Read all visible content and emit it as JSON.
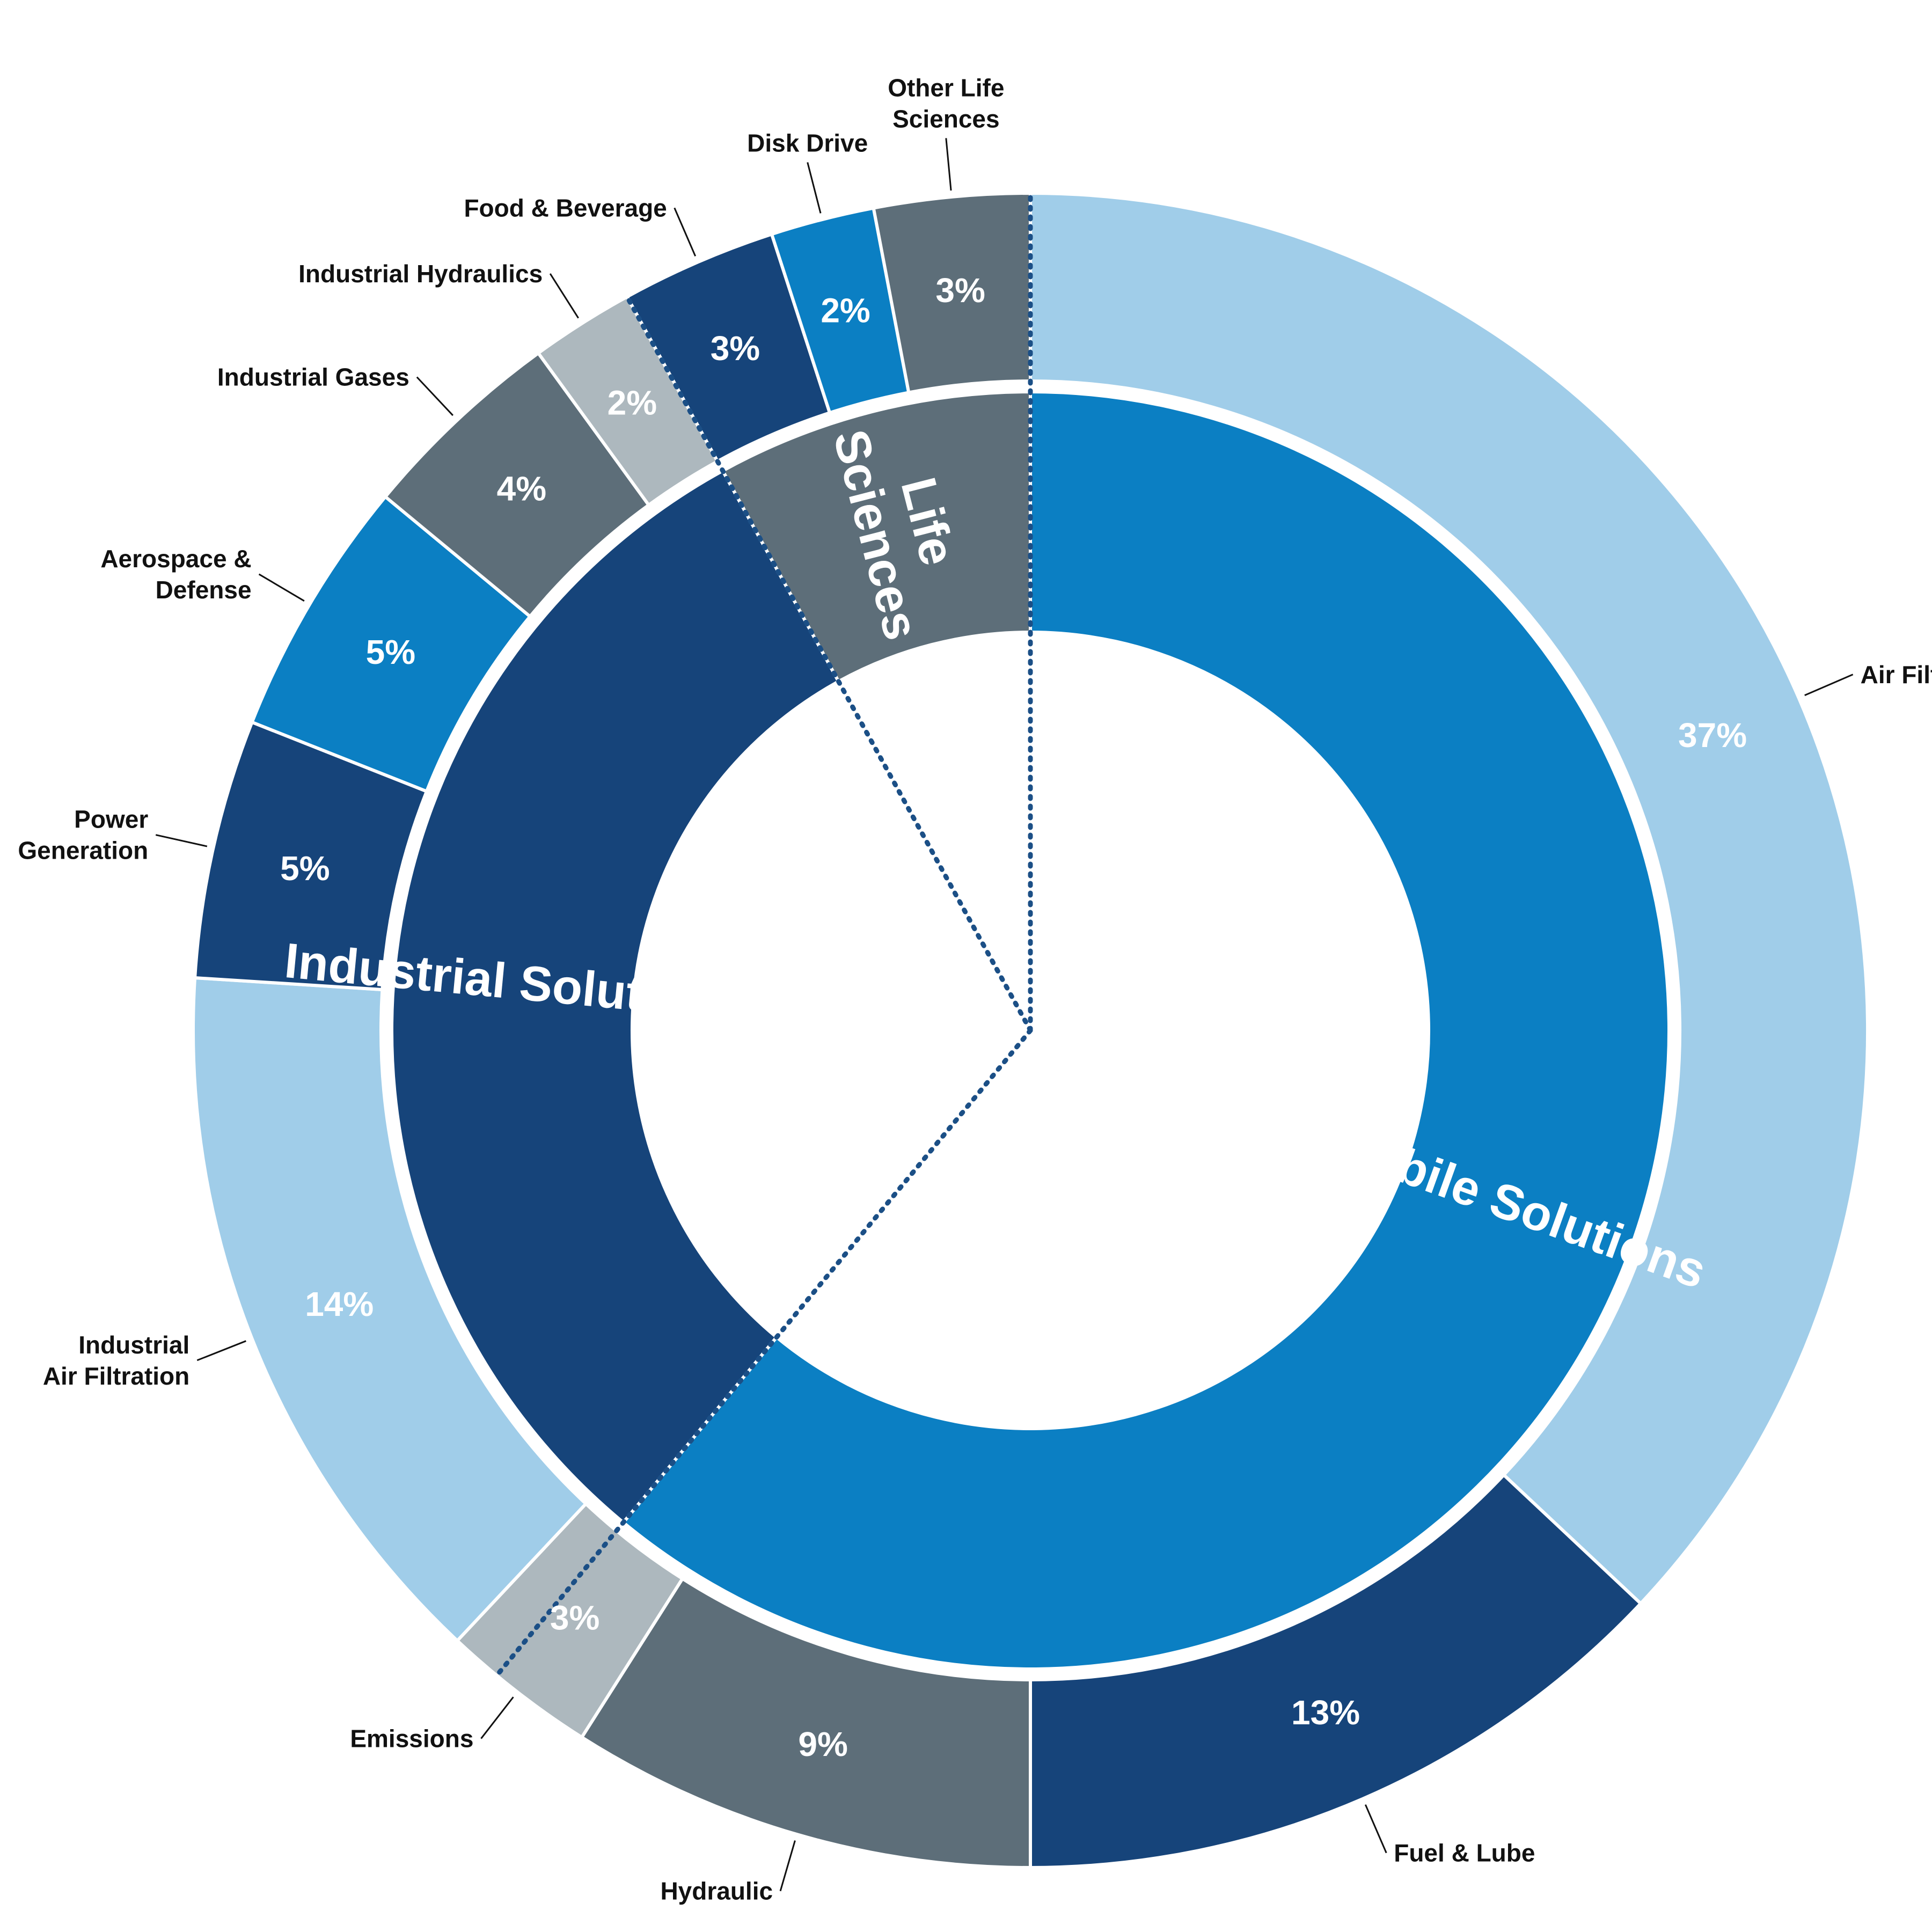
{
  "chart_data": {
    "type": "pie",
    "variant": "nested-donut",
    "title": "",
    "inner_ring": [
      {
        "name": "Mobile Solutions",
        "value": 61,
        "color": "#0b7fc3"
      },
      {
        "name": "Industrial Solutions",
        "value": 31,
        "color": "#16447a"
      },
      {
        "name": "Life Sciences",
        "value": 8,
        "color": "#5d6e79"
      }
    ],
    "outer_ring": [
      {
        "name": "Air Filtration",
        "value": 37,
        "label": "37%",
        "group": "Mobile Solutions",
        "color": "#a0cde9"
      },
      {
        "name": "Fuel & Lube",
        "value": 13,
        "label": "13%",
        "group": "Mobile Solutions",
        "color": "#16447a"
      },
      {
        "name": "Hydraulic",
        "value": 9,
        "label": "9%",
        "group": "Mobile Solutions",
        "color": "#5d6e79"
      },
      {
        "name": "Emissions",
        "value": 3,
        "label": "3%",
        "group": "Mobile Solutions",
        "color": "#adb8be"
      },
      {
        "name": "Industrial\nAir Filtration",
        "value": 14,
        "label": "14%",
        "group": "Industrial Solutions",
        "color": "#a0cde9"
      },
      {
        "name": "Power\nGeneration",
        "value": 5,
        "label": "5%",
        "group": "Industrial Solutions",
        "color": "#16447a"
      },
      {
        "name": "Aerospace &\nDefense",
        "value": 5,
        "label": "5%",
        "group": "Industrial Solutions",
        "color": "#0b7fc3"
      },
      {
        "name": "Industrial Gases",
        "value": 4,
        "label": "4%",
        "group": "Industrial Solutions",
        "color": "#5d6e79"
      },
      {
        "name": "Industrial Hydraulics",
        "value": 2,
        "label": "2%",
        "group": "Industrial Solutions",
        "color": "#adb8be"
      },
      {
        "name": "Food & Beverage",
        "value": 3,
        "label": "3%",
        "group": "Life Sciences",
        "color": "#16447a"
      },
      {
        "name": "Disk Drive",
        "value": 2,
        "label": "2%",
        "group": "Life Sciences",
        "color": "#0b7fc3"
      },
      {
        "name": "Other Life\nSciences",
        "value": 3,
        "label": "3%",
        "group": "Life Sciences",
        "color": "#5d6e79"
      }
    ],
    "start": "12 o'clock",
    "direction": "clockwise",
    "group_dividers": "dotted"
  }
}
